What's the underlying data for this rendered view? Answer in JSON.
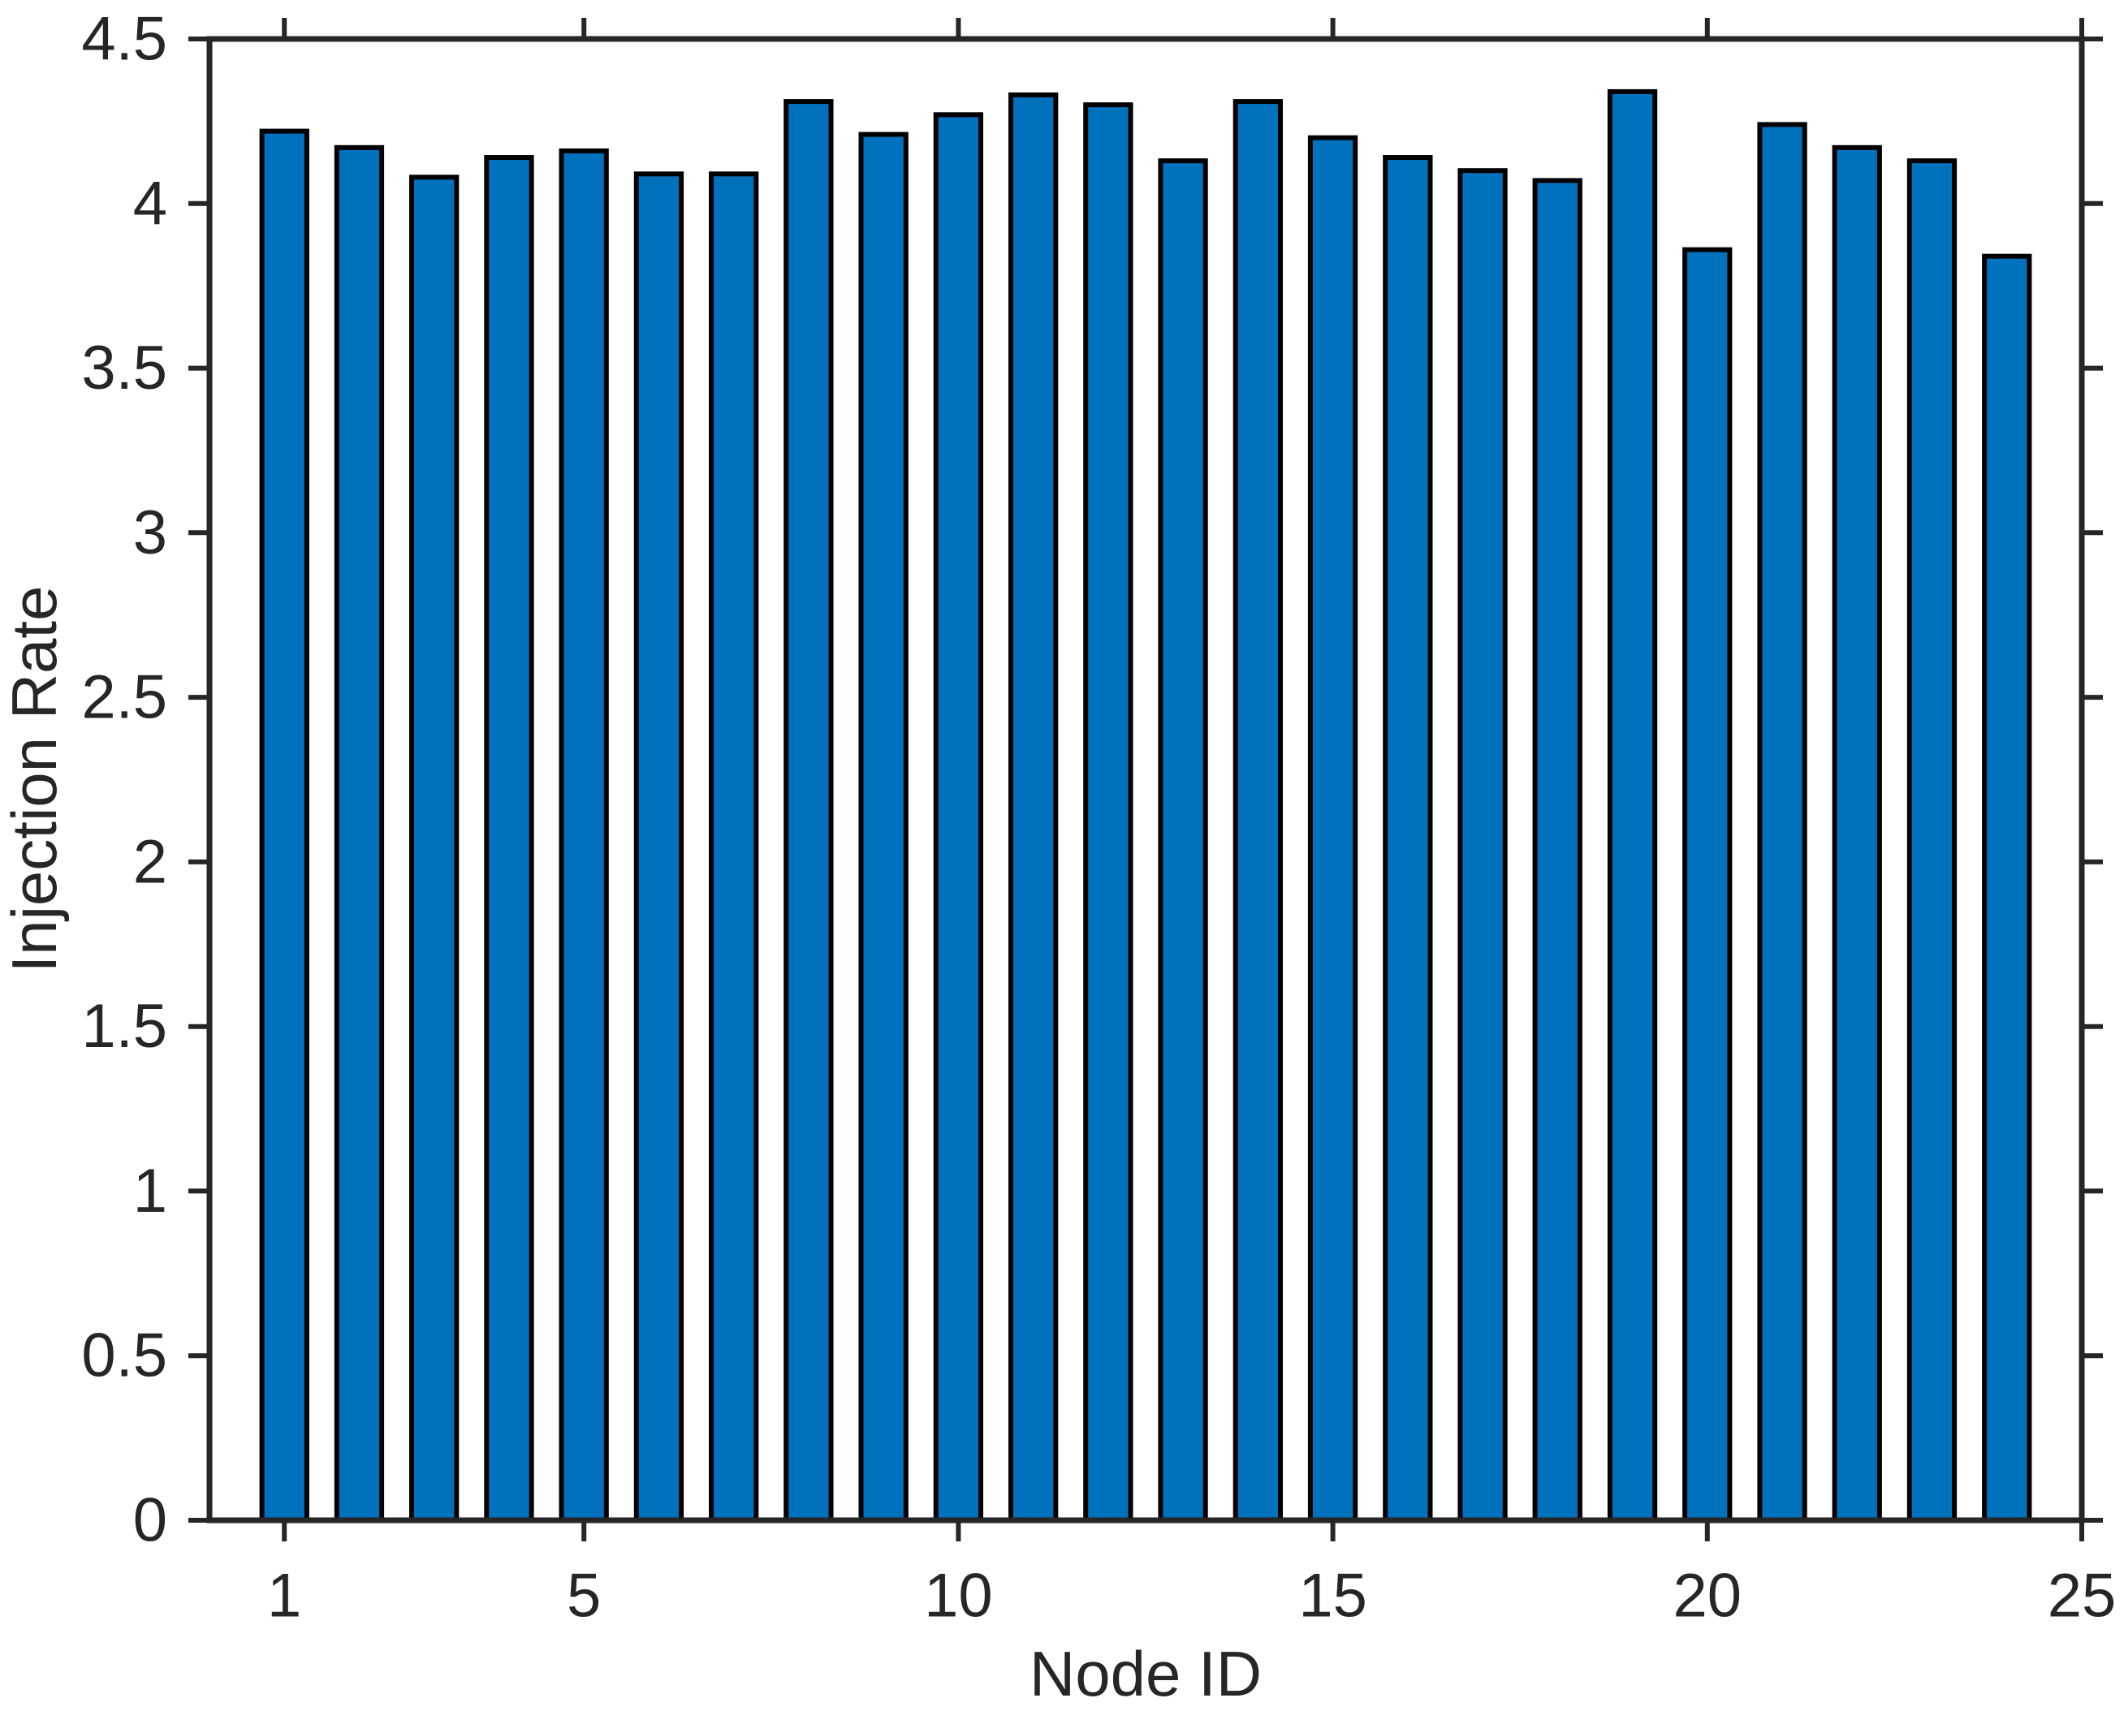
{
  "page": {
    "background": "#ffffff"
  },
  "chart_data": {
    "type": "bar",
    "title": "",
    "xlabel": "Node ID",
    "ylabel": "Injection Rate",
    "x": [
      1,
      2,
      3,
      4,
      5,
      6,
      7,
      8,
      9,
      10,
      11,
      12,
      13,
      14,
      15,
      16,
      17,
      18,
      19,
      20,
      21,
      22,
      23,
      24
    ],
    "values": [
      4.22,
      4.17,
      4.08,
      4.14,
      4.16,
      4.09,
      4.09,
      4.31,
      4.21,
      4.27,
      4.33,
      4.3,
      4.13,
      4.31,
      4.2,
      4.14,
      4.1,
      4.07,
      4.34,
      3.86,
      4.24,
      4.17,
      4.13,
      3.84
    ],
    "xlim": [
      0,
      25
    ],
    "ylim": [
      0,
      4.5
    ],
    "xtick_values": [
      1,
      5,
      10,
      15,
      20,
      25
    ],
    "xtick_labels": [
      "1",
      "5",
      "10",
      "15",
      "20",
      "25"
    ],
    "ytick_values": [
      0,
      0.5,
      1,
      1.5,
      2,
      2.5,
      3,
      3.5,
      4,
      4.5
    ],
    "ytick_labels": [
      "0",
      "0.5",
      "1",
      "1.5",
      "2",
      "2.5",
      "3",
      "3.5",
      "4",
      "4.5"
    ],
    "bar_width_fraction": 0.6,
    "grid": false,
    "legend": null,
    "box": true,
    "tick_direction": "out",
    "colors": {
      "bar_fill": "#0072BD",
      "bar_edge": "#000000",
      "axis": "#262626",
      "text": "#262626",
      "background": "#ffffff"
    }
  }
}
